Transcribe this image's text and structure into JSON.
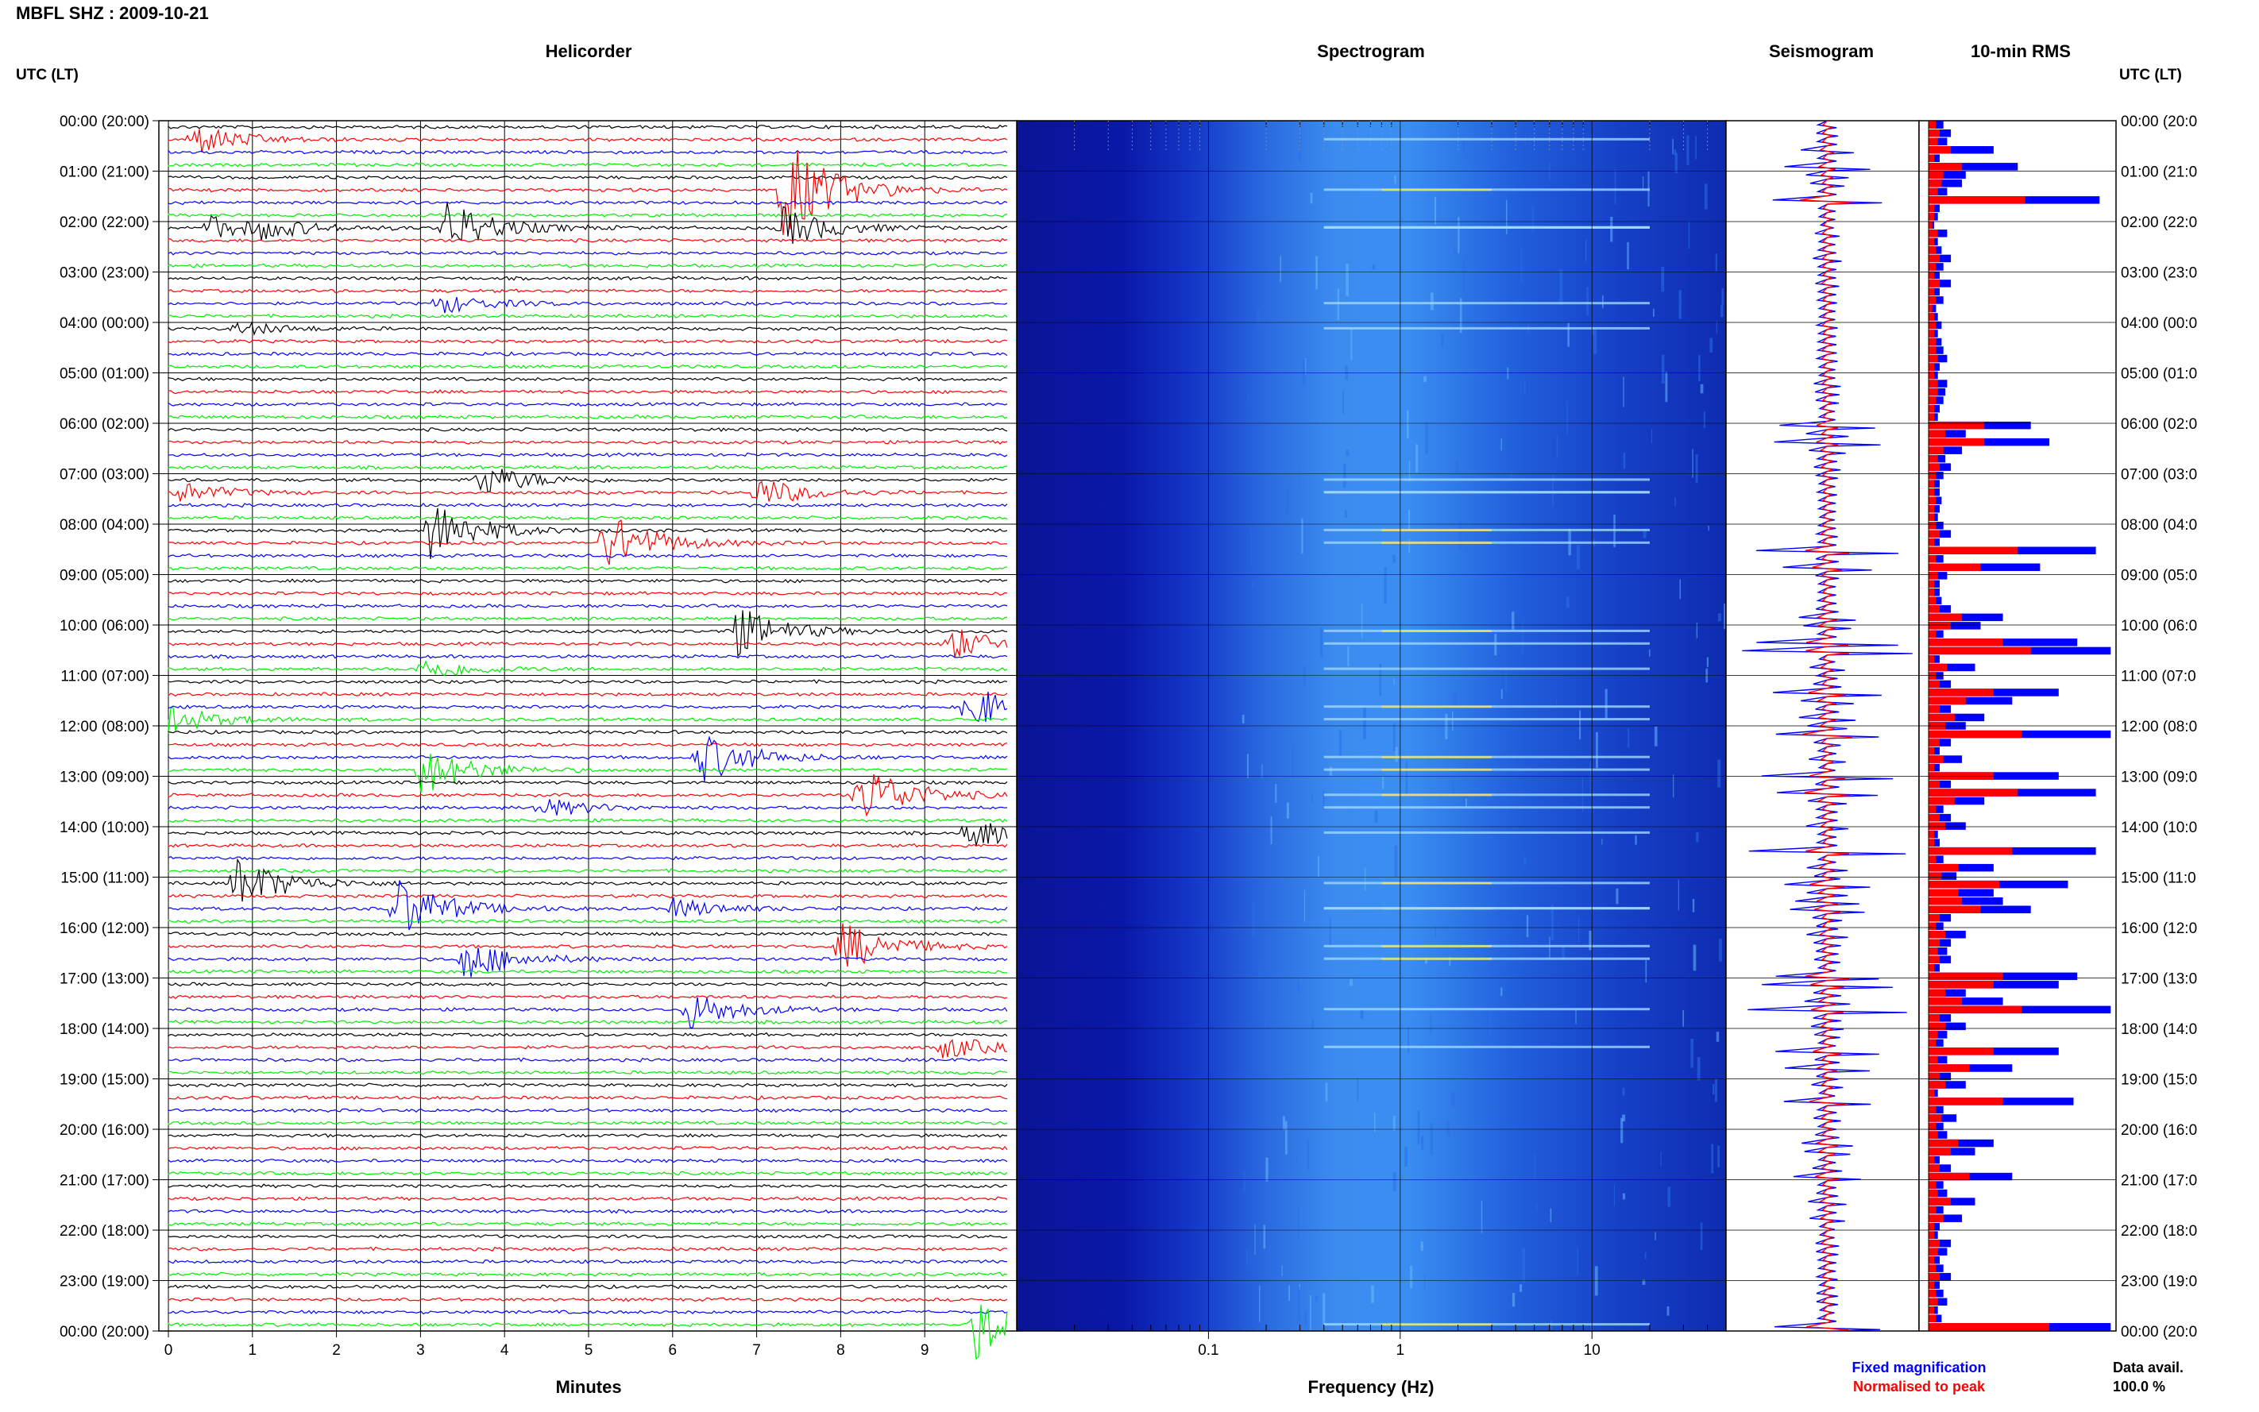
{
  "header": {
    "station": "MBFL SHZ",
    "sep": ":",
    "date": "2009-10-21"
  },
  "panels": {
    "helicorder": "Helicorder",
    "spectrogram": "Spectrogram",
    "seismogram": "Seismogram",
    "rms": "10-min RMS"
  },
  "axis_headers": {
    "left": "UTC (LT)",
    "right": "UTC (LT)"
  },
  "time_labels": [
    "00:00 (20:00)",
    "01:00 (21:00)",
    "02:00 (22:00)",
    "03:00 (23:00)",
    "04:00 (00:00)",
    "05:00 (01:00)",
    "06:00 (02:00)",
    "07:00 (03:00)",
    "08:00 (04:00)",
    "09:00 (05:00)",
    "10:00 (06:00)",
    "11:00 (07:00)",
    "12:00 (08:00)",
    "13:00 (09:00)",
    "14:00 (10:00)",
    "15:00 (11:00)",
    "16:00 (12:00)",
    "17:00 (13:00)",
    "18:00 (14:00)",
    "19:00 (15:00)",
    "20:00 (16:00)",
    "21:00 (17:00)",
    "22:00 (18:00)",
    "23:00 (19:00)",
    "00:00 (20:00)"
  ],
  "right_time_labels": [
    "00:00 (20:0",
    "01:00 (21:0",
    "02:00 (22:0",
    "03:00 (23:0",
    "04:00 (00:0",
    "05:00 (01:0",
    "06:00 (02:0",
    "07:00 (03:0",
    "08:00 (04:0",
    "09:00 (05:0",
    "10:00 (06:0",
    "11:00 (07:0",
    "12:00 (08:0",
    "13:00 (09:0",
    "14:00 (10:0",
    "15:00 (11:0",
    "16:00 (12:0",
    "17:00 (13:0",
    "18:00 (14:0",
    "19:00 (15:0",
    "20:00 (16:0",
    "21:00 (17:0",
    "22:00 (18:0",
    "23:00 (19:0",
    "00:00 (20:0"
  ],
  "helicorder": {
    "xlabel": "Minutes",
    "xticks": [
      "0",
      "1",
      "2",
      "3",
      "4",
      "5",
      "6",
      "7",
      "8",
      "9"
    ],
    "trace_colors": [
      "#000000",
      "#ff0000",
      "#0000ff",
      "#00ee00"
    ],
    "events": [
      {
        "row": 1,
        "minute": 0.3,
        "amp": 0.9
      },
      {
        "row": 5,
        "minute": 7.3,
        "amp": 3.2
      },
      {
        "row": 8,
        "minute": 3.3,
        "amp": 1.6
      },
      {
        "row": 8,
        "minute": 0.5,
        "amp": 0.7
      },
      {
        "row": 8,
        "minute": 7.3,
        "amp": 1.2
      },
      {
        "row": 8,
        "minute": 1.1,
        "amp": 0.5
      },
      {
        "row": 14,
        "minute": 3.2,
        "amp": 0.6
      },
      {
        "row": 16,
        "minute": 0.8,
        "amp": 0.4
      },
      {
        "row": 28,
        "minute": 3.7,
        "amp": 1.0
      },
      {
        "row": 29,
        "minute": 0.1,
        "amp": 0.6
      },
      {
        "row": 29,
        "minute": 7.0,
        "amp": 0.9
      },
      {
        "row": 32,
        "minute": 3.1,
        "amp": 1.8
      },
      {
        "row": 33,
        "minute": 5.2,
        "amp": 1.8
      },
      {
        "row": 40,
        "minute": 6.7,
        "amp": 1.6
      },
      {
        "row": 41,
        "minute": 9.3,
        "amp": 1.0
      },
      {
        "row": 43,
        "minute": 3.0,
        "amp": 0.7
      },
      {
        "row": 46,
        "minute": 9.5,
        "amp": 1.4
      },
      {
        "row": 47,
        "minute": 0.0,
        "amp": 0.8
      },
      {
        "row": 50,
        "minute": 6.3,
        "amp": 1.6
      },
      {
        "row": 51,
        "minute": 3.0,
        "amp": 1.5
      },
      {
        "row": 53,
        "minute": 8.2,
        "amp": 2.0
      },
      {
        "row": 54,
        "minute": 4.4,
        "amp": 0.6
      },
      {
        "row": 56,
        "minute": 9.5,
        "amp": 1.0
      },
      {
        "row": 60,
        "minute": 0.8,
        "amp": 1.6
      },
      {
        "row": 62,
        "minute": 2.7,
        "amp": 1.9
      },
      {
        "row": 62,
        "minute": 6.0,
        "amp": 0.6
      },
      {
        "row": 65,
        "minute": 8.0,
        "amp": 1.5
      },
      {
        "row": 66,
        "minute": 3.5,
        "amp": 1.3
      },
      {
        "row": 70,
        "minute": 6.2,
        "amp": 1.1
      },
      {
        "row": 73,
        "minute": 9.2,
        "amp": 0.7
      },
      {
        "row": 95,
        "minute": 9.6,
        "amp": 2.0
      }
    ]
  },
  "spectrogram": {
    "xlabel": "Frequency (Hz)",
    "xscale": "log",
    "xticks": [
      "0.1",
      "1",
      "10"
    ],
    "xlim": [
      0.01,
      50
    ]
  },
  "legend": {
    "fixed": "Fixed magnification",
    "fixed_color": "#0000ff",
    "normalised": "Normalised to peak",
    "normalised_color": "#ff0000",
    "avail_label": "Data avail.",
    "avail_value": "100.0 %"
  },
  "chart_data": {
    "type": "bar",
    "title": "10-min RMS",
    "orientation": "horizontal",
    "n_intervals": 145,
    "series": [
      {
        "name": "Fixed magnification",
        "color": "#0000ff",
        "values": [
          0.08,
          0.12,
          0.1,
          0.35,
          0.06,
          0.48,
          0.2,
          0.18,
          0.1,
          0.92,
          0.06,
          0.05,
          0.03,
          0.1,
          0.05,
          0.07,
          0.12,
          0.08,
          0.06,
          0.12,
          0.06,
          0.08,
          0.04,
          0.05,
          0.07,
          0.05,
          0.07,
          0.08,
          0.1,
          0.06,
          0.05,
          0.1,
          0.09,
          0.08,
          0.06,
          0.05,
          0.55,
          0.2,
          0.65,
          0.18,
          0.09,
          0.12,
          0.08,
          0.06,
          0.06,
          0.07,
          0.06,
          0.05,
          0.08,
          0.12,
          0.06,
          0.9,
          0.08,
          0.6,
          0.1,
          0.06,
          0.06,
          0.07,
          0.12,
          0.4,
          0.28,
          0.08,
          0.8,
          0.98,
          0.06,
          0.25,
          0.08,
          0.12,
          0.7,
          0.45,
          0.12,
          0.3,
          0.2,
          0.98,
          0.12,
          0.06,
          0.18,
          0.06,
          0.7,
          0.12,
          0.9,
          0.3,
          0.08,
          0.12,
          0.2,
          0.05,
          0.06,
          0.9,
          0.08,
          0.35,
          0.15,
          0.75,
          0.35,
          0.4,
          0.55,
          0.12,
          0.08,
          0.2,
          0.12,
          0.1,
          0.12,
          0.06,
          0.8,
          0.7,
          0.2,
          0.4,
          0.98,
          0.12,
          0.2,
          0.1,
          0.08,
          0.7,
          0.1,
          0.45,
          0.12,
          0.2,
          0.05,
          0.78,
          0.08,
          0.15,
          0.08,
          0.1,
          0.35,
          0.25,
          0.06,
          0.12,
          0.45,
          0.08,
          0.1,
          0.25,
          0.08,
          0.18,
          0.06,
          0.05,
          0.12,
          0.1,
          0.06,
          0.08,
          0.12,
          0.06,
          0.08,
          0.1,
          0.05,
          0.07,
          0.98
        ]
      },
      {
        "name": "Normalised to peak",
        "color": "#ff0000",
        "values": [
          0.04,
          0.06,
          0.05,
          0.12,
          0.03,
          0.18,
          0.08,
          0.07,
          0.05,
          0.52,
          0.03,
          0.03,
          0.02,
          0.05,
          0.03,
          0.04,
          0.06,
          0.04,
          0.03,
          0.06,
          0.03,
          0.04,
          0.02,
          0.03,
          0.04,
          0.03,
          0.04,
          0.04,
          0.05,
          0.03,
          0.03,
          0.05,
          0.05,
          0.04,
          0.03,
          0.03,
          0.3,
          0.09,
          0.3,
          0.08,
          0.05,
          0.06,
          0.04,
          0.03,
          0.03,
          0.04,
          0.03,
          0.03,
          0.04,
          0.06,
          0.03,
          0.48,
          0.04,
          0.28,
          0.05,
          0.03,
          0.03,
          0.04,
          0.06,
          0.18,
          0.12,
          0.04,
          0.4,
          0.55,
          0.03,
          0.1,
          0.04,
          0.06,
          0.35,
          0.2,
          0.06,
          0.14,
          0.09,
          0.5,
          0.06,
          0.03,
          0.08,
          0.03,
          0.35,
          0.06,
          0.48,
          0.14,
          0.04,
          0.06,
          0.09,
          0.03,
          0.03,
          0.45,
          0.04,
          0.16,
          0.07,
          0.38,
          0.16,
          0.18,
          0.28,
          0.06,
          0.04,
          0.09,
          0.06,
          0.05,
          0.06,
          0.03,
          0.4,
          0.35,
          0.09,
          0.18,
          0.5,
          0.06,
          0.09,
          0.05,
          0.04,
          0.35,
          0.05,
          0.22,
          0.06,
          0.09,
          0.03,
          0.4,
          0.04,
          0.07,
          0.04,
          0.05,
          0.16,
          0.12,
          0.03,
          0.06,
          0.22,
          0.04,
          0.05,
          0.12,
          0.04,
          0.08,
          0.03,
          0.03,
          0.06,
          0.05,
          0.03,
          0.04,
          0.06,
          0.03,
          0.04,
          0.05,
          0.03,
          0.04,
          0.65
        ]
      }
    ],
    "xlim": [
      0,
      1
    ],
    "grid": true
  }
}
